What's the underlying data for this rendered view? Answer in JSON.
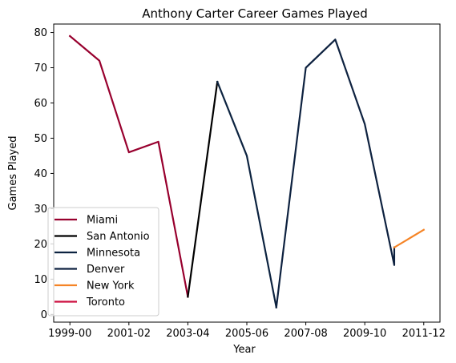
{
  "chart_data": {
    "type": "line",
    "title": "Anthony Carter Career Games Played",
    "xlabel": "Year",
    "ylabel": "Games Played",
    "x_categories": [
      "1999-00",
      "2000-01",
      "2001-02",
      "2002-03",
      "2003-04",
      "2004-05",
      "2005-06",
      "2006-07",
      "2007-08",
      "2008-09",
      "2009-10",
      "2010-11",
      "2011-12"
    ],
    "x_tick_labels": [
      "1999-00",
      "2001-02",
      "2003-04",
      "2005-06",
      "2007-08",
      "2009-10",
      "2011-12"
    ],
    "y_ticks": [
      0,
      10,
      20,
      30,
      40,
      50,
      60,
      70,
      80
    ],
    "ylim": [
      -2.2,
      82.4
    ],
    "xlim": [
      -0.55,
      12.55
    ],
    "grid": false,
    "legend_position": "lower-left",
    "series": [
      {
        "name": "Miami",
        "color": "#98002E",
        "points": [
          [
            "1999-00",
            79
          ],
          [
            "2000-01",
            72
          ],
          [
            "2001-02",
            46
          ],
          [
            "2002-03",
            49
          ],
          [
            "2003-04",
            5
          ]
        ]
      },
      {
        "name": "San Antonio",
        "color": "#000000",
        "points": [
          [
            "2003-04",
            5
          ],
          [
            "2004-05",
            66
          ]
        ]
      },
      {
        "name": "Minnesota",
        "color": "#0C2340",
        "points": [
          [
            "2004-05",
            66
          ],
          [
            "2005-06",
            45
          ],
          [
            "2006-07",
            2
          ]
        ]
      },
      {
        "name": "Denver",
        "color": "#0E2240",
        "points": [
          [
            "2006-07",
            2
          ],
          [
            "2007-08",
            70
          ],
          [
            "2008-09",
            78
          ],
          [
            "2009-10",
            54
          ],
          [
            "2010-11",
            14
          ],
          [
            "2010-11",
            19
          ]
        ]
      },
      {
        "name": "New York",
        "color": "#F58426",
        "points": [
          [
            "2010-11",
            19
          ],
          [
            "2011-12",
            24
          ]
        ]
      },
      {
        "name": "Toronto",
        "color": "#CE1141",
        "points": []
      }
    ]
  }
}
